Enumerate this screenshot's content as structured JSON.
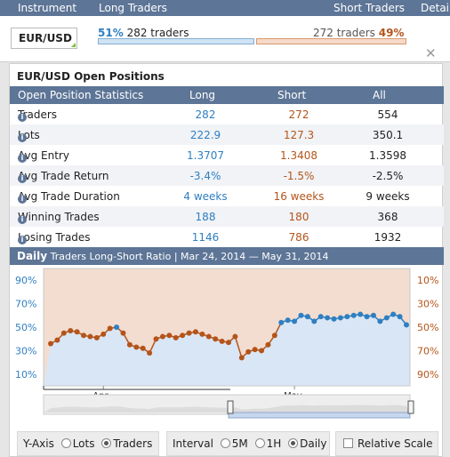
{
  "nav": {
    "instrument": "Instrument",
    "long_traders": "Long Traders",
    "short_traders": "Short Traders",
    "detail": "Detail"
  },
  "summary": {
    "pair": "EUR/USD",
    "long_pct": "51%",
    "long_text": "282 traders",
    "short_text": "272 traders",
    "short_pct": "49%",
    "long_fraction": 0.51,
    "short_fraction": 0.49
  },
  "panel": {
    "title": "EUR/USD Open Positions",
    "columns": [
      "Open Position Statistics",
      "Long",
      "Short",
      "All"
    ],
    "rows": [
      {
        "label": "Traders",
        "long": "282",
        "short": "272",
        "all": "554"
      },
      {
        "label": "Lots",
        "long": "222.9",
        "short": "127.3",
        "all": "350.1"
      },
      {
        "label": "Avg Entry",
        "long": "1.3707",
        "short": "1.3408",
        "all": "1.3598"
      },
      {
        "label": "Avg Trade Return",
        "long": "-3.4%",
        "short": "-1.5%",
        "all": "-2.5%"
      },
      {
        "label": "Avg Trade Duration",
        "long": "4 weeks",
        "short": "16 weeks",
        "all": "9 weeks"
      },
      {
        "label": "Winning Trades",
        "long": "188",
        "short": "180",
        "all": "368"
      },
      {
        "label": "Losing Trades",
        "long": "1146",
        "short": "786",
        "all": "1932"
      }
    ]
  },
  "chart_header": {
    "daily": "Daily",
    "title": "Traders Long-Short Ratio",
    "range": "| Mar 24, 2014 — May 31, 2014"
  },
  "chart_data": {
    "type": "line",
    "left_ticks": [
      "90%",
      "70%",
      "50%",
      "30%",
      "10%"
    ],
    "right_ticks": [
      "10%",
      "30%",
      "50%",
      "70%",
      "90%"
    ],
    "ylim": [
      0,
      100
    ],
    "x_labels": [
      "Apr",
      "May"
    ],
    "long_color": "#2f7fc1",
    "short_color": "#b4541a",
    "values": [
      36,
      39,
      45,
      47,
      46,
      43,
      42,
      41,
      44,
      49,
      50,
      45,
      35,
      33,
      32,
      28,
      40,
      42,
      43,
      41,
      43,
      45,
      46,
      44,
      42,
      40,
      38,
      37,
      42,
      24,
      29,
      31,
      30,
      35,
      43,
      54,
      56,
      55,
      60,
      59,
      55,
      59,
      58,
      57,
      58,
      59,
      60,
      61,
      59,
      60,
      55,
      58,
      61,
      59,
      52
    ]
  },
  "options": {
    "yaxis_label": "Y-Axis",
    "lots": "Lots",
    "traders": "Traders",
    "interval_label": "Interval",
    "m5": "5M",
    "h1": "1H",
    "daily": "Daily",
    "relative": "Relative Scale"
  },
  "icons": {
    "close": "close-icon",
    "info": "info-icon"
  }
}
